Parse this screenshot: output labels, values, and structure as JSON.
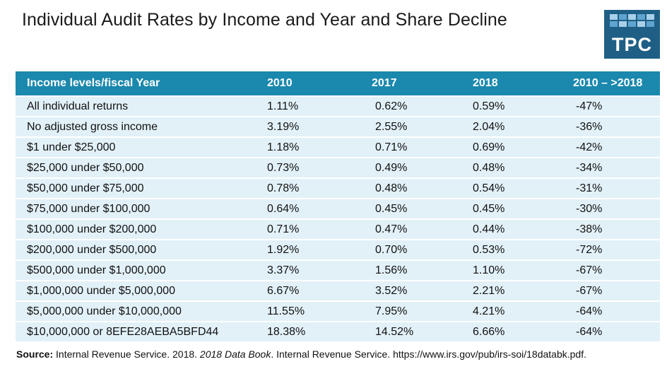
{
  "title": "Individual Audit Rates by Income and Year and Share Decline",
  "logo": {
    "text": "TPC"
  },
  "source": {
    "label": "Source:",
    "pre": " Internal Revenue Service. 2018. ",
    "italic": "2018 Data Book",
    "post": ". Internal Revenue Service. https://www.irs.gov/pub/irs-soi/18databk.pdf."
  },
  "colors": {
    "header": "#1b88ad",
    "row": "#e2f1f8",
    "logo": "#1f5f86"
  },
  "chart_data": {
    "type": "table",
    "columns": [
      "Income levels/fiscal Year",
      "2010",
      "2017",
      "2018",
      "2010 – >2018"
    ],
    "rows": [
      [
        "All individual returns",
        "1.11%",
        "0.62%",
        "0.59%",
        "-47%"
      ],
      [
        "No adjusted gross income",
        "3.19%",
        "2.55%",
        "2.04%",
        "-36%"
      ],
      [
        "$1 under $25,000",
        "1.18%",
        "0.71%",
        "0.69%",
        "-42%"
      ],
      [
        "$25,000 under $50,000",
        "0.73%",
        "0.49%",
        "0.48%",
        "-34%"
      ],
      [
        "$50,000 under $75,000",
        "0.78%",
        "0.48%",
        "0.54%",
        "-31%"
      ],
      [
        "$75,000 under $100,000",
        "0.64%",
        "0.45%",
        "0.45%",
        "-30%"
      ],
      [
        "$100,000 under $200,000",
        "0.71%",
        "0.47%",
        "0.44%",
        "-38%"
      ],
      [
        "$200,000 under $500,000",
        "1.92%",
        "0.70%",
        "0.53%",
        "-72%"
      ],
      [
        "$500,000 under $1,000,000",
        "3.37%",
        "1.56%",
        "1.10%",
        "-67%"
      ],
      [
        "$1,000,000 under $5,000,000",
        "6.67%",
        "3.52%",
        "2.21%",
        "-67%"
      ],
      [
        "$5,000,000 under $10,000,000",
        "11.55%",
        "7.95%",
        "4.21%",
        "-64%"
      ],
      [
        "$10,000,000 or 8EFE28AEBA5BFD44",
        "18.38%",
        "14.52%",
        "6.66%",
        "-64%"
      ]
    ]
  }
}
